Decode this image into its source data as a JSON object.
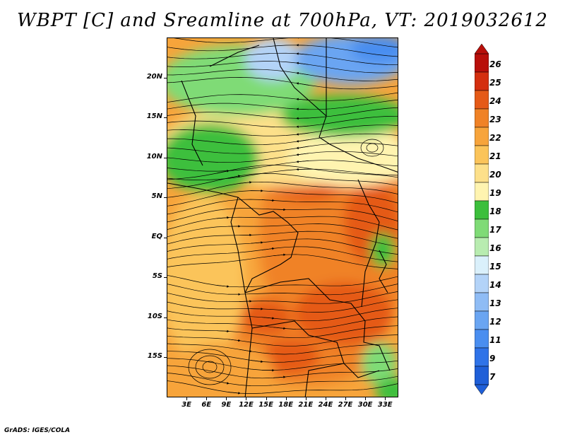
{
  "title": "WBPT [C] and Sreamline at 700hPa, VT: 2019032612",
  "credit": "GrADS: IGES/COLA",
  "map": {
    "lat_labels": [
      "20N",
      "15N",
      "10N",
      "5N",
      "EQ",
      "5S",
      "10S",
      "15S"
    ],
    "lat_values": [
      20,
      15,
      10,
      5,
      0,
      -5,
      -10,
      -15
    ],
    "lon_labels": [
      "3E",
      "6E",
      "9E",
      "12E",
      "15E",
      "18E",
      "21E",
      "24E",
      "27E",
      "30E",
      "33E"
    ],
    "lon_values": [
      3,
      6,
      9,
      12,
      15,
      18,
      21,
      24,
      27,
      30,
      33
    ],
    "lon_range": [
      0,
      35
    ],
    "lat_range": [
      -20,
      25
    ]
  },
  "colorbar": {
    "labels": [
      "7",
      "9",
      "11",
      "12",
      "13",
      "14",
      "15",
      "16",
      "17",
      "18",
      "19",
      "20",
      "21",
      "22",
      "23",
      "24",
      "25",
      "26"
    ],
    "colors": [
      "#1f5fd8",
      "#2f73e8",
      "#4a8ef0",
      "#6aa5f2",
      "#8fbcf5",
      "#b3d3f8",
      "#daf0fb",
      "#b8ecb0",
      "#7fdb76",
      "#3cbf3c",
      "#fff4b0",
      "#fde08a",
      "#fbc45a",
      "#f7a43b",
      "#f08226",
      "#e55a17",
      "#d42f0f",
      "#b80f0a"
    ]
  }
}
